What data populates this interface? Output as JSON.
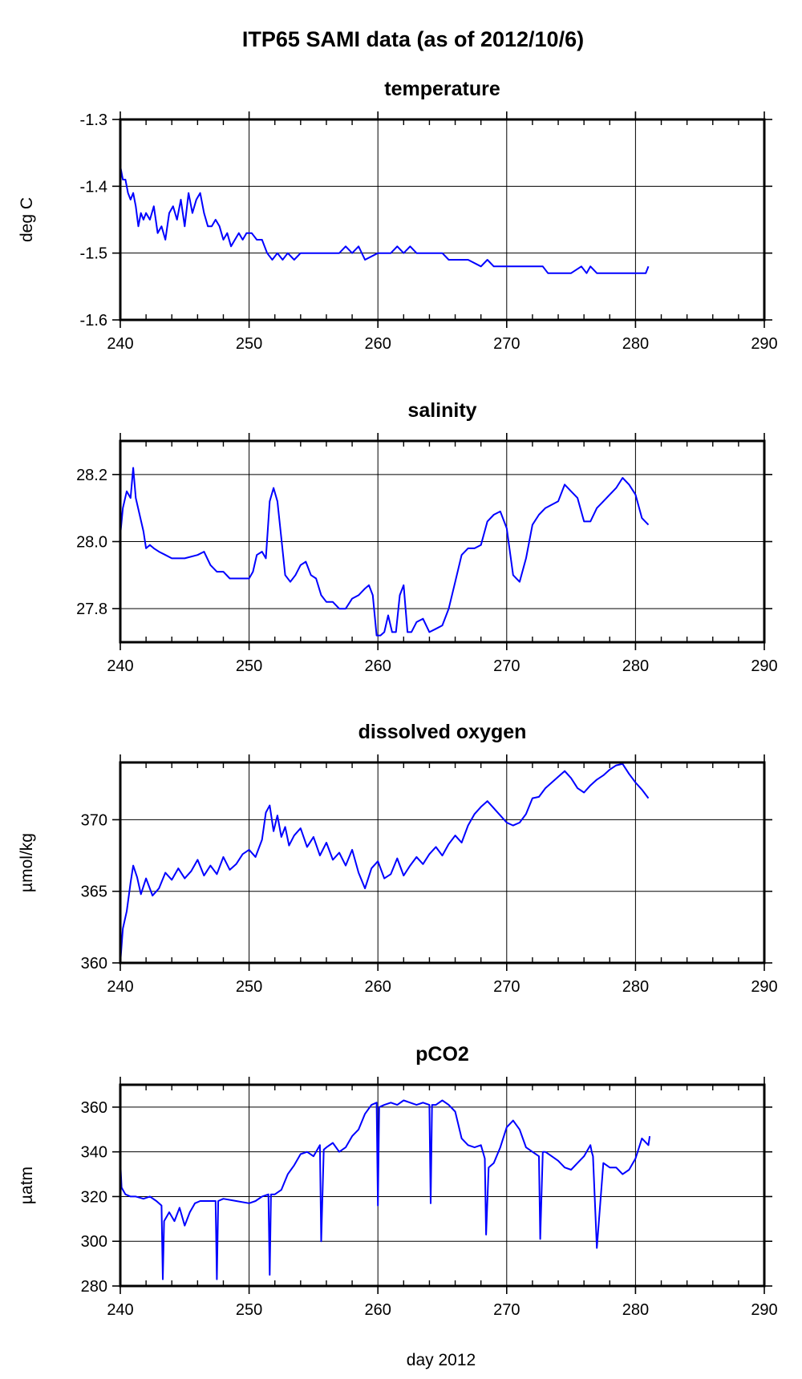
{
  "title": "ITP65 SAMI data (as of 2012/10/6)",
  "xlabel": "day 2012",
  "chart_data": [
    {
      "type": "line",
      "title": "temperature",
      "ylabel": "deg C",
      "xlim": [
        240,
        290
      ],
      "ylim": [
        -1.6,
        -1.3
      ],
      "xticks": [
        240,
        250,
        260,
        270,
        280,
        290
      ],
      "yticks": [
        -1.6,
        -1.5,
        -1.4,
        -1.3
      ],
      "ytick_labels": [
        "-1.6",
        "-1.5",
        "-1.4",
        "-1.3"
      ],
      "grid": true,
      "color": "#0000ff",
      "x": [
        240.0,
        240.2,
        240.4,
        240.6,
        240.8,
        241.0,
        241.2,
        241.4,
        241.6,
        241.8,
        242.0,
        242.3,
        242.6,
        242.9,
        243.2,
        243.5,
        243.8,
        244.1,
        244.4,
        244.7,
        245.0,
        245.3,
        245.6,
        245.9,
        246.2,
        246.5,
        246.8,
        247.1,
        247.4,
        247.7,
        248.0,
        248.3,
        248.6,
        248.9,
        249.2,
        249.5,
        249.8,
        250.2,
        250.6,
        251.0,
        251.4,
        251.8,
        252.2,
        252.6,
        253.0,
        253.5,
        254.0,
        254.5,
        255.0,
        256.0,
        257.0,
        257.5,
        258.0,
        258.5,
        259.0,
        260.0,
        261.0,
        261.5,
        262.0,
        262.5,
        263.0,
        264.0,
        265.0,
        265.5,
        266.0,
        267.0,
        268.0,
        268.5,
        269.0,
        270.0,
        271.0,
        272.0,
        272.8,
        273.2,
        274.0,
        275.0,
        275.8,
        276.2,
        276.5,
        277.0,
        278.0,
        279.0,
        280.0,
        280.8,
        281.0
      ],
      "values": [
        -1.37,
        -1.39,
        -1.39,
        -1.41,
        -1.42,
        -1.41,
        -1.43,
        -1.46,
        -1.44,
        -1.45,
        -1.44,
        -1.45,
        -1.43,
        -1.47,
        -1.46,
        -1.48,
        -1.44,
        -1.43,
        -1.45,
        -1.42,
        -1.46,
        -1.41,
        -1.44,
        -1.42,
        -1.41,
        -1.44,
        -1.46,
        -1.46,
        -1.45,
        -1.46,
        -1.48,
        -1.47,
        -1.49,
        -1.48,
        -1.47,
        -1.48,
        -1.47,
        -1.47,
        -1.48,
        -1.48,
        -1.5,
        -1.51,
        -1.5,
        -1.51,
        -1.5,
        -1.51,
        -1.5,
        -1.5,
        -1.5,
        -1.5,
        -1.5,
        -1.49,
        -1.5,
        -1.49,
        -1.51,
        -1.5,
        -1.5,
        -1.49,
        -1.5,
        -1.49,
        -1.5,
        -1.5,
        -1.5,
        -1.51,
        -1.51,
        -1.51,
        -1.52,
        -1.51,
        -1.52,
        -1.52,
        -1.52,
        -1.52,
        -1.52,
        -1.53,
        -1.53,
        -1.53,
        -1.52,
        -1.53,
        -1.52,
        -1.53,
        -1.53,
        -1.53,
        -1.53,
        -1.53,
        -1.52
      ]
    },
    {
      "type": "line",
      "title": "salinity",
      "ylabel": "",
      "xlim": [
        240,
        290
      ],
      "ylim": [
        27.7,
        28.3
      ],
      "xticks": [
        240,
        250,
        260,
        270,
        280,
        290
      ],
      "yticks": [
        27.8,
        28.0,
        28.2
      ],
      "ytick_labels": [
        "27.8",
        "28.0",
        "28.2"
      ],
      "grid": true,
      "color": "#0000ff",
      "x": [
        240.0,
        240.2,
        240.5,
        240.8,
        241.0,
        241.2,
        241.5,
        241.8,
        242.0,
        242.3,
        242.6,
        243.0,
        243.5,
        244.0,
        245.0,
        246.0,
        246.5,
        247.0,
        247.5,
        248.0,
        248.5,
        249.0,
        249.5,
        250.0,
        250.3,
        250.6,
        251.0,
        251.3,
        251.6,
        251.9,
        252.2,
        252.5,
        252.8,
        253.2,
        253.6,
        254.0,
        254.4,
        254.8,
        255.2,
        255.6,
        256.0,
        256.5,
        257.0,
        257.5,
        258.0,
        258.5,
        259.0,
        259.3,
        259.6,
        259.9,
        260.2,
        260.5,
        260.8,
        261.1,
        261.4,
        261.7,
        262.0,
        262.3,
        262.6,
        263.0,
        263.5,
        264.0,
        264.5,
        265.0,
        265.5,
        266.0,
        266.5,
        267.0,
        267.5,
        268.0,
        268.5,
        269.0,
        269.5,
        270.0,
        270.5,
        271.0,
        271.5,
        272.0,
        272.5,
        273.0,
        273.5,
        274.0,
        274.5,
        275.0,
        275.5,
        276.0,
        276.5,
        277.0,
        277.5,
        278.0,
        278.5,
        279.0,
        279.5,
        280.0,
        280.5,
        281.0
      ],
      "values": [
        28.02,
        28.1,
        28.15,
        28.13,
        28.22,
        28.13,
        28.08,
        28.03,
        27.98,
        27.99,
        27.98,
        27.97,
        27.96,
        27.95,
        27.95,
        27.96,
        27.97,
        27.93,
        27.91,
        27.91,
        27.89,
        27.89,
        27.89,
        27.89,
        27.91,
        27.96,
        27.97,
        27.95,
        28.12,
        28.16,
        28.12,
        28.01,
        27.9,
        27.88,
        27.9,
        27.93,
        27.94,
        27.9,
        27.89,
        27.84,
        27.82,
        27.82,
        27.8,
        27.8,
        27.83,
        27.84,
        27.86,
        27.87,
        27.84,
        27.72,
        27.72,
        27.73,
        27.78,
        27.73,
        27.73,
        27.84,
        27.87,
        27.73,
        27.73,
        27.76,
        27.77,
        27.73,
        27.74,
        27.75,
        27.8,
        27.88,
        27.96,
        27.98,
        27.98,
        27.99,
        28.06,
        28.08,
        28.09,
        28.04,
        27.9,
        27.88,
        27.95,
        28.05,
        28.08,
        28.1,
        28.11,
        28.12,
        28.17,
        28.15,
        28.13,
        28.06,
        28.06,
        28.1,
        28.12,
        28.14,
        28.16,
        28.19,
        28.17,
        28.14,
        28.07,
        28.05
      ]
    },
    {
      "type": "line",
      "title": "dissolved oxygen",
      "ylabel": "µmol/kg",
      "xlim": [
        240,
        290
      ],
      "ylim": [
        360,
        374
      ],
      "xticks": [
        240,
        250,
        260,
        270,
        280,
        290
      ],
      "yticks": [
        360,
        365,
        370
      ],
      "ytick_labels": [
        "360",
        "365",
        "370"
      ],
      "grid": true,
      "color": "#0000ff",
      "x": [
        240.0,
        240.2,
        240.5,
        240.8,
        241.0,
        241.3,
        241.6,
        242.0,
        242.5,
        243.0,
        243.5,
        244.0,
        244.5,
        245.0,
        245.5,
        246.0,
        246.5,
        247.0,
        247.5,
        248.0,
        248.5,
        249.0,
        249.5,
        250.0,
        250.5,
        251.0,
        251.3,
        251.6,
        251.9,
        252.2,
        252.5,
        252.8,
        253.1,
        253.5,
        254.0,
        254.5,
        255.0,
        255.5,
        256.0,
        256.5,
        257.0,
        257.5,
        258.0,
        258.5,
        259.0,
        259.5,
        260.0,
        260.5,
        261.0,
        261.5,
        262.0,
        262.5,
        263.0,
        263.5,
        264.0,
        264.5,
        265.0,
        265.5,
        266.0,
        266.5,
        267.0,
        267.5,
        268.0,
        268.5,
        269.0,
        269.5,
        270.0,
        270.5,
        271.0,
        271.5,
        272.0,
        272.5,
        273.0,
        273.5,
        274.0,
        274.5,
        275.0,
        275.5,
        276.0,
        276.5,
        277.0,
        277.5,
        278.0,
        278.5,
        279.0,
        279.5,
        280.0,
        280.5,
        281.0
      ],
      "values": [
        360.0,
        362.4,
        363.6,
        365.6,
        366.8,
        366.0,
        364.8,
        365.9,
        364.7,
        365.2,
        366.3,
        365.8,
        366.6,
        365.9,
        366.4,
        367.2,
        366.1,
        366.8,
        366.2,
        367.4,
        366.5,
        366.9,
        367.6,
        367.9,
        367.4,
        368.6,
        370.5,
        371.0,
        369.2,
        370.3,
        368.8,
        369.5,
        368.2,
        368.9,
        369.4,
        368.1,
        368.8,
        367.5,
        368.4,
        367.2,
        367.7,
        366.8,
        367.9,
        366.3,
        365.2,
        366.6,
        367.1,
        365.9,
        366.2,
        367.3,
        366.1,
        366.8,
        367.4,
        366.9,
        367.6,
        368.1,
        367.5,
        368.3,
        368.9,
        368.4,
        369.6,
        370.4,
        370.9,
        371.3,
        370.8,
        370.3,
        369.8,
        369.6,
        369.8,
        370.4,
        371.5,
        371.6,
        372.2,
        372.6,
        373.0,
        373.4,
        372.9,
        372.2,
        371.9,
        372.4,
        372.8,
        373.1,
        373.5,
        373.8,
        373.9,
        373.2,
        372.6,
        372.1,
        371.5
      ]
    },
    {
      "type": "line",
      "title": "pCO2",
      "ylabel": "µatm",
      "xlim": [
        240,
        290
      ],
      "ylim": [
        280,
        370
      ],
      "xticks": [
        240,
        250,
        260,
        270,
        280,
        290
      ],
      "yticks": [
        280,
        300,
        320,
        340,
        360
      ],
      "ytick_labels": [
        "280",
        "300",
        "320",
        "340",
        "360"
      ],
      "grid": true,
      "color": "#0000ff",
      "x": [
        240.0,
        240.1,
        240.4,
        240.8,
        241.2,
        241.8,
        242.3,
        242.8,
        243.2,
        243.3,
        243.4,
        243.8,
        244.2,
        244.6,
        245.0,
        245.4,
        245.8,
        246.2,
        246.8,
        247.4,
        247.5,
        247.6,
        248.0,
        249.0,
        250.0,
        250.5,
        251.0,
        251.5,
        251.6,
        251.7,
        252.0,
        252.5,
        253.0,
        253.5,
        254.0,
        254.5,
        255.0,
        255.5,
        255.6,
        255.8,
        256.0,
        256.5,
        257.0,
        257.5,
        258.0,
        258.5,
        259.0,
        259.5,
        259.9,
        260.0,
        260.1,
        260.5,
        261.0,
        261.5,
        262.0,
        262.5,
        263.0,
        263.5,
        264.0,
        264.1,
        264.2,
        264.5,
        265.0,
        265.5,
        266.0,
        266.5,
        267.0,
        267.5,
        268.0,
        268.3,
        268.4,
        268.6,
        269.0,
        269.5,
        270.0,
        270.5,
        271.0,
        271.5,
        272.0,
        272.5,
        272.6,
        272.8,
        273.0,
        273.5,
        274.0,
        274.5,
        275.0,
        275.5,
        276.0,
        276.5,
        276.6,
        276.7,
        277.0,
        277.5,
        278.0,
        278.5,
        279.0,
        279.5,
        280.0,
        280.5,
        281.0,
        281.1
      ],
      "values": [
        336,
        324,
        321,
        320,
        320,
        319,
        320,
        318,
        316,
        283,
        309,
        313,
        309,
        315,
        307,
        313,
        317,
        318,
        318,
        318,
        283,
        318,
        319,
        318,
        317,
        318,
        320,
        321,
        285,
        321,
        321,
        323,
        330,
        334,
        339,
        340,
        338,
        343,
        300,
        341,
        342,
        344,
        340,
        342,
        347,
        350,
        357,
        361,
        362,
        316,
        360,
        361,
        362,
        361,
        363,
        362,
        361,
        362,
        361,
        317,
        361,
        361,
        363,
        361,
        358,
        346,
        343,
        342,
        343,
        337,
        303,
        333,
        335,
        342,
        351,
        354,
        350,
        342,
        340,
        338,
        301,
        340,
        340,
        338,
        336,
        333,
        332,
        335,
        338,
        343,
        340,
        338,
        297,
        335,
        333,
        333,
        330,
        332,
        337,
        346,
        343,
        347
      ]
    }
  ]
}
